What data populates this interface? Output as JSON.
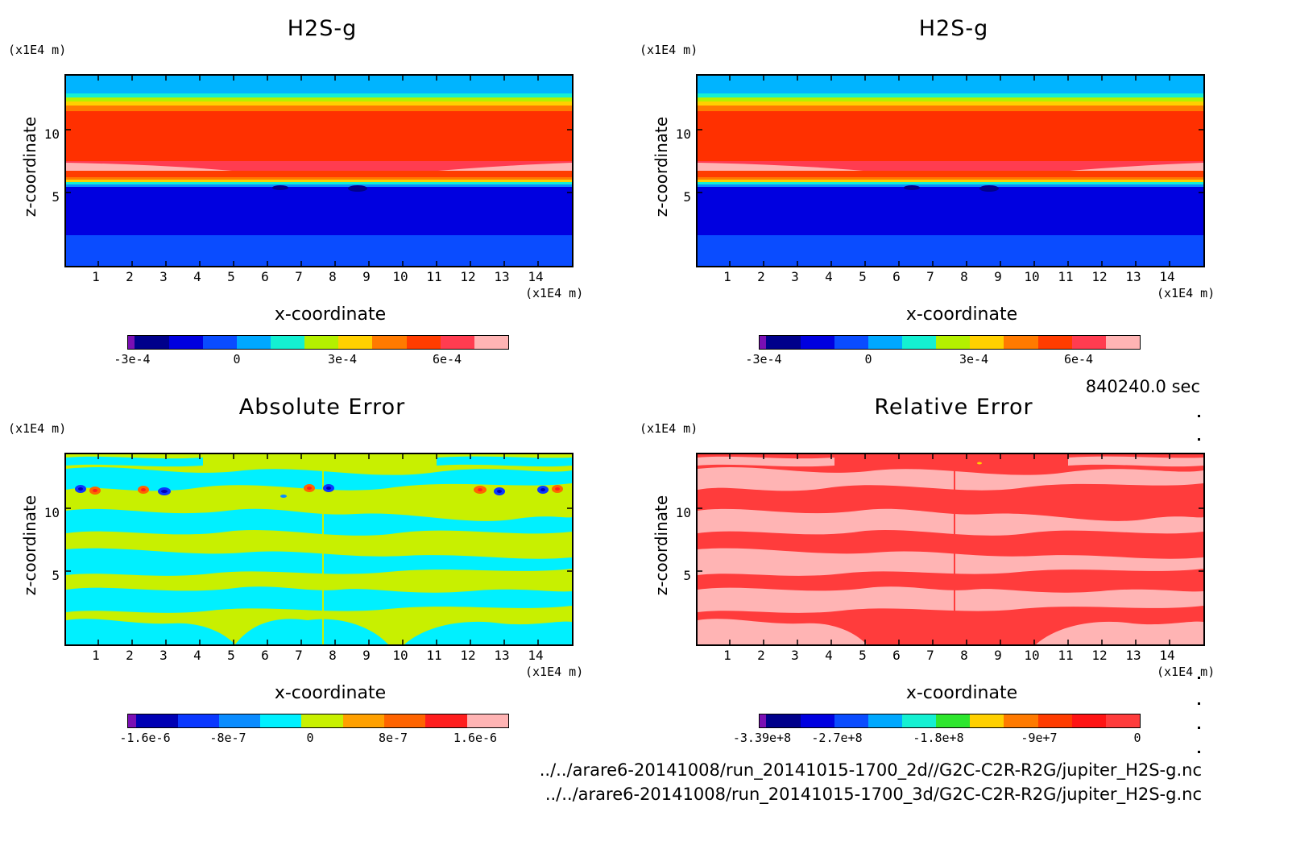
{
  "timestamp": "840240.0 sec",
  "files": [
    "../../arare6-20141008/run_20141015-1700_2d//G2C-C2R-R2G/jupiter_H2S-g.nc",
    "../../arare6-20141008/run_20141015-1700_3d/G2C-C2R-R2G/jupiter_H2S-g.nc"
  ],
  "colors": {
    "h2s_scale": [
      "#7a0fb4",
      "#00008b",
      "#0000e0",
      "#0a4cff",
      "#00a8ff",
      "#14f0d2",
      "#b4f000",
      "#ffd000",
      "#ff7a00",
      "#ff3c00",
      "#ff3c50",
      "#ffb4b4"
    ],
    "abs_scale": [
      "#7a0fb4",
      "#0000b4",
      "#0a38ff",
      "#0a8cff",
      "#00f0ff",
      "#c8f000",
      "#ffa000",
      "#ff6400",
      "#ff1e1e",
      "#ffb4b4"
    ],
    "rel_scale": [
      "#7a0fb4",
      "#00008b",
      "#0000e0",
      "#0a4cff",
      "#00a8ff",
      "#14f0d2",
      "#2ee62e",
      "#ffd000",
      "#ff7a00",
      "#ff3c00",
      "#ff1414",
      "#ff3c3c"
    ]
  },
  "panels": [
    {
      "id": "h2s-2d",
      "title": "H2S-g",
      "xlabel": "x-coordinate",
      "ylabel": "z-coordinate",
      "x_unit": "(x1E4 m)",
      "y_unit": "(x1E4 m)",
      "x_ticks": [
        "1",
        "2",
        "3",
        "4",
        "5",
        "6",
        "7",
        "8",
        "9",
        "10",
        "11",
        "12",
        "13",
        "14"
      ],
      "y_ticks": [
        "5",
        "10"
      ],
      "colorbar_ticks": [
        "-3e-4",
        "0",
        "3e-4",
        "6e-4"
      ]
    },
    {
      "id": "h2s-3d",
      "title": "H2S-g",
      "xlabel": "x-coordinate",
      "ylabel": "z-coordinate",
      "x_unit": "(x1E4 m)",
      "y_unit": "(x1E4 m)",
      "x_ticks": [
        "1",
        "2",
        "3",
        "4",
        "5",
        "6",
        "7",
        "8",
        "9",
        "10",
        "11",
        "12",
        "13",
        "14"
      ],
      "y_ticks": [
        "5",
        "10"
      ],
      "colorbar_ticks": [
        "-3e-4",
        "0",
        "3e-4",
        "6e-4"
      ]
    },
    {
      "id": "abs-error",
      "title": "Absolute Error",
      "xlabel": "x-coordinate",
      "ylabel": "z-coordinate",
      "x_unit": "(x1E4 m)",
      "y_unit": "(x1E4 m)",
      "x_ticks": [
        "1",
        "2",
        "3",
        "4",
        "5",
        "6",
        "7",
        "8",
        "9",
        "10",
        "11",
        "12",
        "13",
        "14"
      ],
      "y_ticks": [
        "5",
        "10"
      ],
      "colorbar_ticks": [
        "-1.6e-6",
        "-8e-7",
        "0",
        "8e-7",
        "1.6e-6"
      ]
    },
    {
      "id": "rel-error",
      "title": "Relative Error",
      "xlabel": "x-coordinate",
      "ylabel": "z-coordinate",
      "x_unit": "(x1E4 m)",
      "y_unit": "(x1E4 m)",
      "x_ticks": [
        "1",
        "2",
        "3",
        "4",
        "5",
        "6",
        "7",
        "8",
        "9",
        "10",
        "11",
        "12",
        "13",
        "14"
      ],
      "y_ticks": [
        "5",
        "10"
      ],
      "colorbar_ticks": [
        "-3.39e+8",
        "-2.7e+8",
        "-1.8e+8",
        "-9e+7",
        "0"
      ]
    }
  ],
  "chart_data": [
    {
      "type": "heatmap",
      "title": "H2S-g",
      "xlabel": "x-coordinate",
      "ylabel": "z-coordinate",
      "xlim": [
        0,
        15
      ],
      "ylim": [
        0,
        15
      ],
      "x_ticks": [
        1,
        2,
        3,
        4,
        5,
        6,
        7,
        8,
        9,
        10,
        11,
        12,
        13,
        14
      ],
      "y_ticks": [
        5,
        10
      ],
      "colorbar": {
        "min": -0.00035,
        "max": 0.0008,
        "levels": 12,
        "ticks": [
          -0.0003,
          0,
          0.0003,
          0.0006
        ]
      }
    },
    {
      "type": "heatmap",
      "title": "H2S-g",
      "xlabel": "x-coordinate",
      "ylabel": "z-coordinate",
      "xlim": [
        0,
        15
      ],
      "ylim": [
        0,
        15
      ],
      "x_ticks": [
        1,
        2,
        3,
        4,
        5,
        6,
        7,
        8,
        9,
        10,
        11,
        12,
        13,
        14
      ],
      "y_ticks": [
        5,
        10
      ],
      "colorbar": {
        "min": -0.00035,
        "max": 0.0008,
        "levels": 12,
        "ticks": [
          -0.0003,
          0,
          0.0003,
          0.0006
        ]
      }
    },
    {
      "type": "heatmap",
      "title": "Absolute Error",
      "xlabel": "x-coordinate",
      "ylabel": "z-coordinate",
      "xlim": [
        0,
        15
      ],
      "ylim": [
        0,
        15
      ],
      "x_ticks": [
        1,
        2,
        3,
        4,
        5,
        6,
        7,
        8,
        9,
        10,
        11,
        12,
        13,
        14
      ],
      "y_ticks": [
        5,
        10
      ],
      "colorbar": {
        "min": -2e-06,
        "max": 2e-06,
        "levels": 10,
        "ticks": [
          -1.6e-06,
          -8e-07,
          0,
          8e-07,
          1.6e-06
        ]
      }
    },
    {
      "type": "heatmap",
      "title": "Relative Error",
      "xlabel": "x-coordinate",
      "ylabel": "z-coordinate",
      "xlim": [
        0,
        15
      ],
      "ylim": [
        0,
        15
      ],
      "x_ticks": [
        1,
        2,
        3,
        4,
        5,
        6,
        7,
        8,
        9,
        10,
        11,
        12,
        13,
        14
      ],
      "y_ticks": [
        5,
        10
      ],
      "colorbar": {
        "min": -339000000.0,
        "max": 0,
        "levels": 12,
        "ticks": [
          -339000000.0,
          -270000000.0,
          -180000000.0,
          -90000000.0,
          0
        ]
      }
    }
  ]
}
